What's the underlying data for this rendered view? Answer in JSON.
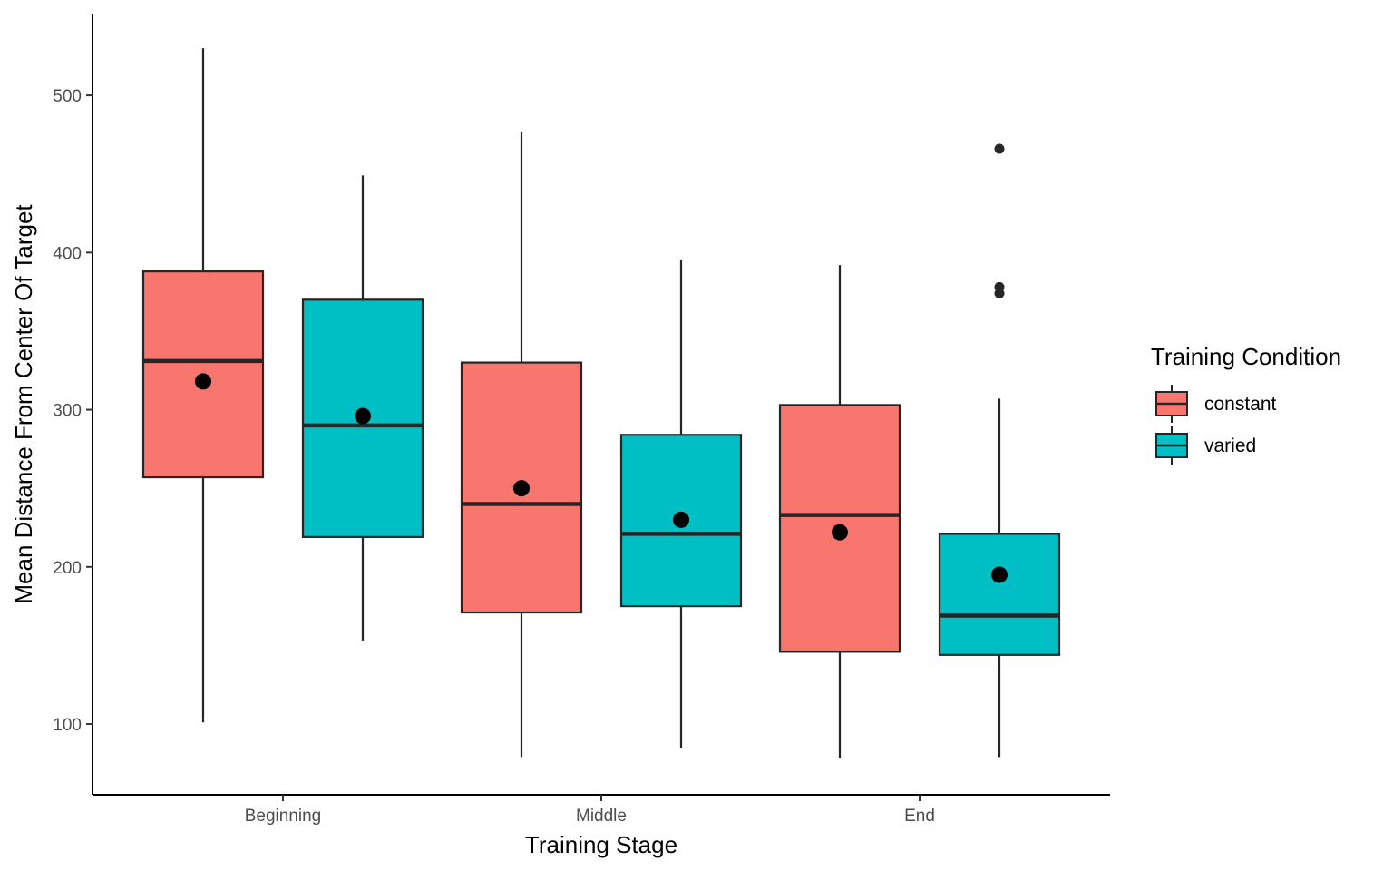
{
  "chart_data": {
    "type": "boxplot",
    "title": "",
    "xlabel": "Training Stage",
    "ylabel": "Mean Distance From Center Of Target",
    "categories": [
      "Beginning",
      "Middle",
      "End"
    ],
    "ylim": [
      55,
      552
    ],
    "yticks": [
      100,
      200,
      300,
      400,
      500
    ],
    "grid": false,
    "legend": {
      "title": "Training Condition",
      "position": "right"
    },
    "colors": {
      "constant": "#F8766D",
      "varied": "#00BFC4",
      "outline": "#262626",
      "mean": "#000000"
    },
    "series": [
      {
        "name": "constant",
        "boxes": [
          {
            "category": "Beginning",
            "whisker_low": 101,
            "q1": 257,
            "median": 331,
            "q3": 388,
            "whisker_high": 530,
            "mean": 318,
            "outliers": []
          },
          {
            "category": "Middle",
            "whisker_low": 79,
            "q1": 171,
            "median": 240,
            "q3": 330,
            "whisker_high": 477,
            "mean": 250,
            "outliers": []
          },
          {
            "category": "End",
            "whisker_low": 78,
            "q1": 146,
            "median": 233,
            "q3": 303,
            "whisker_high": 392,
            "mean": 222,
            "outliers": []
          }
        ]
      },
      {
        "name": "varied",
        "boxes": [
          {
            "category": "Beginning",
            "whisker_low": 153,
            "q1": 219,
            "median": 290,
            "q3": 370,
            "whisker_high": 449,
            "mean": 296,
            "outliers": []
          },
          {
            "category": "Middle",
            "whisker_low": 85,
            "q1": 175,
            "median": 221,
            "q3": 284,
            "whisker_high": 395,
            "mean": 230,
            "outliers": []
          },
          {
            "category": "End",
            "whisker_low": 79,
            "q1": 144,
            "median": 169,
            "q3": 221,
            "whisker_high": 307,
            "mean": 195,
            "outliers": [
              374,
              378,
              466
            ]
          }
        ]
      }
    ]
  }
}
